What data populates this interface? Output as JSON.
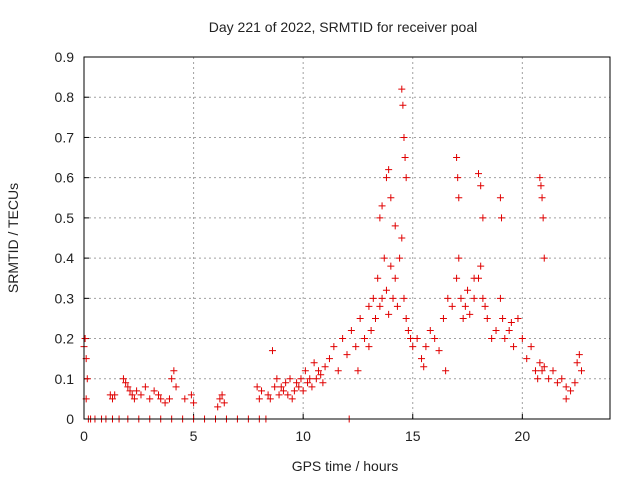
{
  "chart_data": {
    "type": "scatter",
    "title": "Day 221 of 2022, SRMTID for receiver poal",
    "xlabel": "GPS time / hours",
    "ylabel": "SRMTID / TECUs",
    "xlim": [
      0,
      24
    ],
    "ylim": [
      0,
      0.9
    ],
    "x_ticks": [
      0,
      5,
      10,
      15,
      20
    ],
    "y_ticks": [
      0,
      0.1,
      0.2,
      0.3,
      0.4,
      0.5,
      0.6,
      0.7,
      0.8,
      0.9
    ],
    "x_tick_labels": [
      "0",
      "5",
      "10",
      "15",
      "20"
    ],
    "y_tick_labels": [
      "0",
      "0.1",
      "0.2",
      "0.3",
      "0.4",
      "0.5",
      "0.6",
      "0.7",
      "0.8",
      "0.9"
    ],
    "grid": true,
    "marker": "+",
    "series": [
      {
        "name": "SRMTID",
        "color": "#e00000",
        "x": [
          0.0,
          0.05,
          0.1,
          0.1,
          0.15,
          0.2,
          0.3,
          0.5,
          0.8,
          1.0,
          1.3,
          1.6,
          2.0,
          2.5,
          3.0,
          3.5,
          4.0,
          4.5,
          5.0,
          5.5,
          6.0,
          6.5,
          7.0,
          7.5,
          8.0,
          8.3,
          12.1,
          1.2,
          1.3,
          1.4,
          1.8,
          1.9,
          2.0,
          2.1,
          2.2,
          2.3,
          2.4,
          2.6,
          2.8,
          3.0,
          3.2,
          3.4,
          3.5,
          3.7,
          3.9,
          4.0,
          4.1,
          4.2,
          4.6,
          4.9,
          5.0,
          6.1,
          6.2,
          6.3,
          6.4,
          7.9,
          8.0,
          8.1,
          8.4,
          8.5,
          8.6,
          8.7,
          8.8,
          8.9,
          9.0,
          9.1,
          9.2,
          9.3,
          9.4,
          9.5,
          9.6,
          9.7,
          9.8,
          9.9,
          10.0,
          10.1,
          10.2,
          10.3,
          10.4,
          10.5,
          10.6,
          10.7,
          10.8,
          10.9,
          11.0,
          11.2,
          11.4,
          11.6,
          11.8,
          12.0,
          12.2,
          12.4,
          12.6,
          12.8,
          13.0,
          13.1,
          13.2,
          13.3,
          13.4,
          13.5,
          13.6,
          13.7,
          13.8,
          13.9,
          14.0,
          14.1,
          14.2,
          14.3,
          14.4,
          14.5,
          14.6,
          14.7,
          14.8,
          14.9,
          15.0,
          15.2,
          15.4,
          15.6,
          15.8,
          16.0,
          16.2,
          16.4,
          16.6,
          16.8,
          17.0,
          17.1,
          17.2,
          17.3,
          17.4,
          17.5,
          17.6,
          17.8,
          18.0,
          18.1,
          18.2,
          18.3,
          18.4,
          18.6,
          18.8,
          19.0,
          19.1,
          19.2,
          19.4,
          19.6,
          19.8,
          20.0,
          20.2,
          20.4,
          20.6,
          20.7,
          20.8,
          20.9,
          21.0,
          21.2,
          21.4,
          21.6,
          21.8,
          22.0,
          22.2,
          22.4,
          22.5,
          22.6,
          22.7,
          13.5,
          13.6,
          13.8,
          13.9,
          14.0,
          14.5,
          14.55,
          14.6,
          14.65,
          14.7,
          17.0,
          17.05,
          17.1,
          18.0,
          18.1,
          18.2,
          19.0,
          19.05,
          20.8,
          20.85,
          20.9,
          20.95,
          21.0,
          12.5,
          13.0,
          14.2,
          15.5,
          16.5,
          17.8,
          19.5,
          22.0
        ],
        "y": [
          0.18,
          0.2,
          0.15,
          0.05,
          0.1,
          0.0,
          0.0,
          0.0,
          0.0,
          0.0,
          0.0,
          0.0,
          0.0,
          0.0,
          0.0,
          0.0,
          0.0,
          0.0,
          0.0,
          0.0,
          0.0,
          0.0,
          0.0,
          0.0,
          0.0,
          0.0,
          0.0,
          0.06,
          0.05,
          0.06,
          0.1,
          0.09,
          0.08,
          0.07,
          0.06,
          0.05,
          0.07,
          0.06,
          0.08,
          0.05,
          0.07,
          0.06,
          0.05,
          0.04,
          0.05,
          0.1,
          0.12,
          0.08,
          0.05,
          0.06,
          0.04,
          0.03,
          0.05,
          0.06,
          0.04,
          0.08,
          0.05,
          0.07,
          0.06,
          0.05,
          0.17,
          0.08,
          0.1,
          0.06,
          0.08,
          0.07,
          0.09,
          0.06,
          0.1,
          0.05,
          0.07,
          0.09,
          0.08,
          0.1,
          0.07,
          0.12,
          0.09,
          0.1,
          0.08,
          0.14,
          0.1,
          0.12,
          0.11,
          0.09,
          0.13,
          0.15,
          0.18,
          0.12,
          0.2,
          0.16,
          0.22,
          0.18,
          0.25,
          0.2,
          0.28,
          0.22,
          0.3,
          0.25,
          0.35,
          0.28,
          0.3,
          0.4,
          0.32,
          0.26,
          0.38,
          0.3,
          0.35,
          0.28,
          0.4,
          0.45,
          0.3,
          0.25,
          0.22,
          0.2,
          0.18,
          0.2,
          0.15,
          0.18,
          0.22,
          0.2,
          0.17,
          0.25,
          0.3,
          0.28,
          0.35,
          0.4,
          0.3,
          0.25,
          0.28,
          0.32,
          0.26,
          0.3,
          0.35,
          0.38,
          0.3,
          0.28,
          0.25,
          0.2,
          0.22,
          0.3,
          0.25,
          0.2,
          0.22,
          0.18,
          0.25,
          0.2,
          0.15,
          0.18,
          0.12,
          0.1,
          0.14,
          0.12,
          0.13,
          0.1,
          0.12,
          0.09,
          0.1,
          0.08,
          0.07,
          0.09,
          0.14,
          0.16,
          0.12,
          0.5,
          0.53,
          0.6,
          0.62,
          0.55,
          0.82,
          0.78,
          0.7,
          0.65,
          0.6,
          0.65,
          0.6,
          0.55,
          0.61,
          0.58,
          0.5,
          0.55,
          0.5,
          0.6,
          0.58,
          0.55,
          0.5,
          0.4,
          0.12,
          0.18,
          0.48,
          0.13,
          0.12,
          0.35,
          0.24,
          0.05
        ]
      }
    ]
  }
}
